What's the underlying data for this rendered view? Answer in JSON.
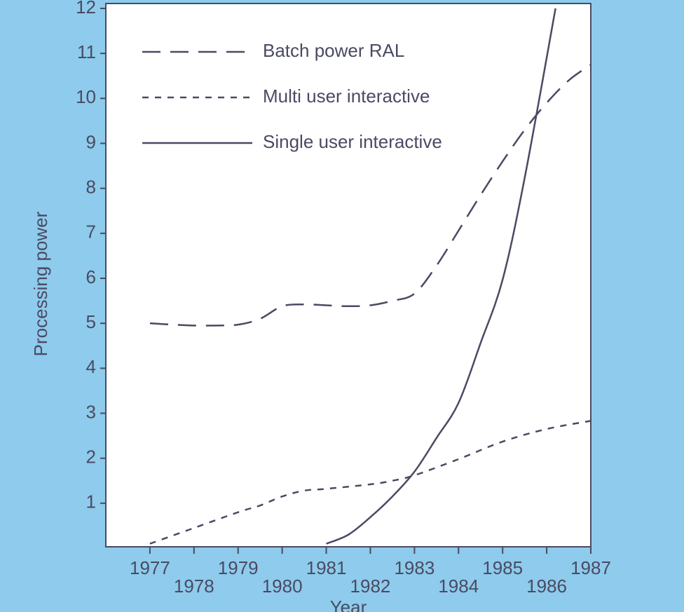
{
  "chart_data": {
    "type": "line",
    "x_label": "Year",
    "y_label": "Processing power",
    "xlim": [
      1976,
      1987
    ],
    "xticks": [
      1977,
      1978,
      1979,
      1980,
      1981,
      1982,
      1983,
      1984,
      1985,
      1986,
      1987
    ],
    "ylim": [
      0,
      12
    ],
    "yticks": [
      1,
      2,
      3,
      4,
      5,
      6,
      7,
      8,
      9,
      10,
      11,
      12
    ],
    "legend": "upper left",
    "series": [
      {
        "name": "Batch power RAL",
        "color": "#4a4a63",
        "linestyle": "dashed",
        "x": [
          1977,
          1977.5,
          1978,
          1978.5,
          1979,
          1979.5,
          1980,
          1980.5,
          1981,
          1981.5,
          1982,
          1982.5,
          1983,
          1983.5,
          1984,
          1984.5,
          1985,
          1985.5,
          1986,
          1986.5,
          1987
        ],
        "values": [
          5.0,
          4.97,
          4.95,
          4.95,
          4.97,
          5.1,
          5.38,
          5.42,
          5.4,
          5.38,
          5.4,
          5.5,
          5.66,
          6.28,
          7.06,
          7.85,
          8.6,
          9.3,
          9.9,
          10.4,
          10.75
        ]
      },
      {
        "name": "Multi user interactive",
        "color": "#4a4a63",
        "linestyle": "dotted",
        "x": [
          1977,
          1978,
          1979,
          1979.5,
          1980,
          1980.5,
          1981,
          1982,
          1982.5,
          1983,
          1984,
          1985,
          1986,
          1987
        ],
        "values": [
          0.1,
          0.45,
          0.8,
          0.95,
          1.15,
          1.28,
          1.32,
          1.42,
          1.5,
          1.62,
          1.98,
          2.37,
          2.65,
          2.83
        ]
      },
      {
        "name": "Single user interactive",
        "color": "#4a4a63",
        "linestyle": "solid",
        "x": [
          1981,
          1981.5,
          1982,
          1982.5,
          1983,
          1983.5,
          1984,
          1984.5,
          1985,
          1985.5,
          1986.2
        ],
        "values": [
          0.1,
          0.3,
          0.69,
          1.15,
          1.7,
          2.45,
          3.23,
          4.56,
          5.97,
          8.23,
          12
        ]
      }
    ]
  }
}
